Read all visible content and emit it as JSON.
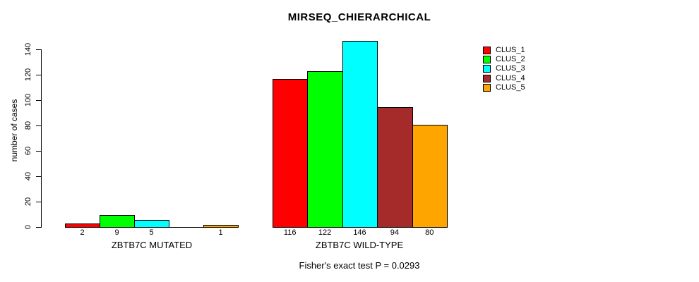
{
  "chart_data": {
    "type": "bar",
    "title": "MIRSEQ_CHIERARCHICAL",
    "ylabel": "number of cases",
    "xlabel": "",
    "annotation": "Fisher's exact test P = 0.0293",
    "groups": [
      "ZBTB7C MUTATED",
      "ZBTB7C WILD-TYPE"
    ],
    "series": [
      {
        "name": "CLUS_1",
        "color": "#ff0000",
        "values": [
          2,
          116
        ]
      },
      {
        "name": "CLUS_2",
        "color": "#00ff00",
        "values": [
          9,
          122
        ]
      },
      {
        "name": "CLUS_3",
        "color": "#00ffff",
        "values": [
          5,
          146
        ]
      },
      {
        "name": "CLUS_4",
        "color": "#a52a2a",
        "values": [
          0,
          94
        ]
      },
      {
        "name": "CLUS_5",
        "color": "#ffa500",
        "values": [
          1,
          80
        ]
      }
    ],
    "bar_labels": [
      [
        "2",
        "9",
        "5",
        "",
        "1"
      ],
      [
        "116",
        "122",
        "146",
        "94",
        "80"
      ]
    ],
    "y_ticks": [
      0,
      20,
      40,
      60,
      80,
      100,
      120,
      140
    ],
    "ylim": [
      0,
      140
    ],
    "grid": false,
    "legend_position": "right",
    "bar_border_color": "#000000",
    "text_color": "#000000"
  }
}
